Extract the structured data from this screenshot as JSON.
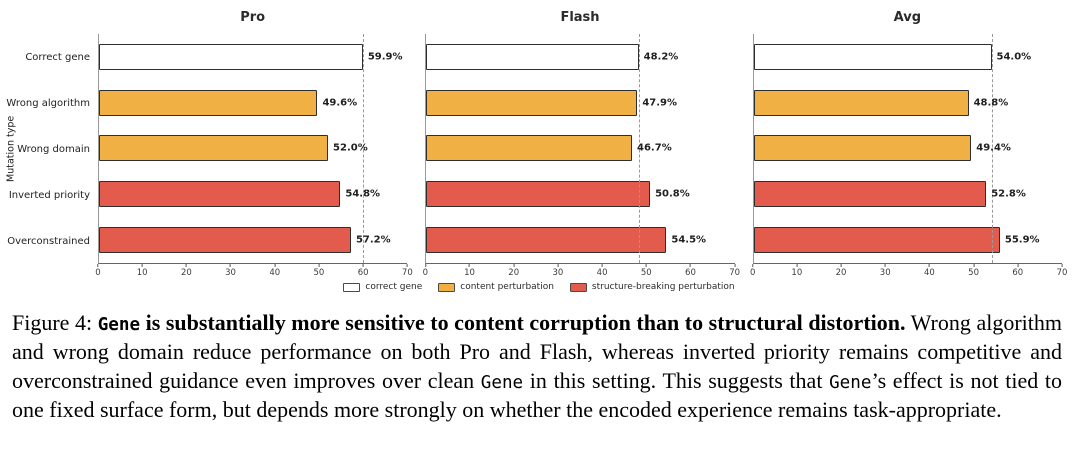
{
  "chart_data": {
    "type": "bar",
    "orientation": "horizontal",
    "ylabel": "Mutation type",
    "xlabel": "",
    "xlim": [
      0,
      70
    ],
    "x_ticks": [
      0,
      10,
      20,
      30,
      40,
      50,
      60,
      70
    ],
    "grid": false,
    "categories": [
      "Correct gene",
      "Wrong algorithm",
      "Wrong domain",
      "Inverted priority",
      "Overconstrained"
    ],
    "category_groups": [
      "correct",
      "content",
      "content",
      "structure",
      "structure"
    ],
    "panels": [
      {
        "title": "Pro",
        "values": [
          59.9,
          49.6,
          52.0,
          54.8,
          57.2
        ],
        "refline": 59.9
      },
      {
        "title": "Flash",
        "values": [
          48.2,
          47.9,
          46.7,
          50.8,
          54.5
        ],
        "refline": 48.2
      },
      {
        "title": "Avg",
        "values": [
          54.0,
          48.8,
          49.4,
          52.8,
          55.9
        ],
        "refline": 54.0
      }
    ],
    "value_label_suffix": "%",
    "legend_position": "bottom-center",
    "legend": [
      {
        "label": "correct gene",
        "type": "correct"
      },
      {
        "label": "content perturbation",
        "type": "content"
      },
      {
        "label": "structure-breaking perturbation",
        "type": "structure"
      }
    ],
    "colors": {
      "correct": "#ffffff",
      "content": "#F0B044",
      "structure": "#E25B4C",
      "edge": "#2e2e2e",
      "refline": "#9a9a9a"
    }
  },
  "caption": {
    "segments": [
      {
        "text": "Figure 4: ",
        "style": "normal"
      },
      {
        "text": "Gene",
        "style": "bold-mono"
      },
      {
        "text": " is substantially more sensitive to content corruption than to structural distortion.",
        "style": "bold"
      },
      {
        "text": " Wrong algorithm and wrong domain reduce performance on both Pro and Flash, whereas inverted priority remains competitive and overconstrained guidance even improves over clean ",
        "style": "normal"
      },
      {
        "text": "Gene",
        "style": "mono"
      },
      {
        "text": " in this setting.  This suggests that ",
        "style": "normal"
      },
      {
        "text": "Gene",
        "style": "mono"
      },
      {
        "text": "’s effect is not tied to one fixed surface form, but depends more strongly on whether the encoded experience remains task-appropriate.",
        "style": "normal"
      }
    ]
  }
}
